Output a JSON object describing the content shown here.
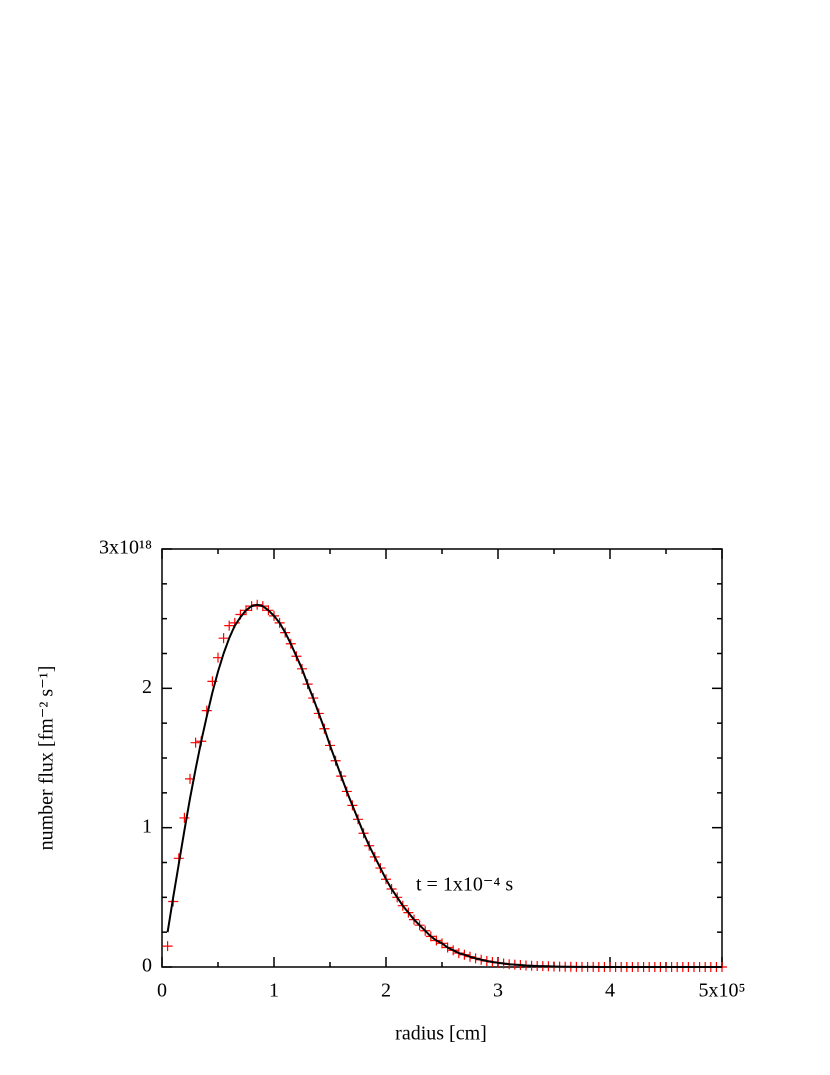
{
  "chart_data": {
    "type": "line",
    "xlabel": "radius [cm]",
    "ylabel": "number flux [fm⁻² s⁻¹]",
    "annotation": "t = 1x10⁻⁴ s",
    "xlim": [
      0,
      5
    ],
    "ylim": [
      0,
      3
    ],
    "xticks": [
      0,
      1,
      2,
      3,
      4,
      {
        "value": 5,
        "label": "5x10⁵"
      }
    ],
    "yticks": [
      0,
      1,
      2,
      {
        "value": 3,
        "label": "3x10¹⁸"
      }
    ],
    "xminorticks": [
      0.5,
      1.5,
      2.5,
      3.5,
      4.5
    ],
    "yminorticks": [
      0.25,
      0.5,
      0.75,
      1.25,
      1.5,
      1.75,
      2.25,
      2.5,
      2.75
    ],
    "x": [
      0.05,
      0.1,
      0.15,
      0.2,
      0.25,
      0.3,
      0.35,
      0.4,
      0.45,
      0.5,
      0.55,
      0.6,
      0.65,
      0.7,
      0.75,
      0.8,
      0.85,
      0.9,
      0.95,
      1.0,
      1.05,
      1.1,
      1.15,
      1.2,
      1.25,
      1.3,
      1.35,
      1.4,
      1.45,
      1.5,
      1.55,
      1.6,
      1.65,
      1.7,
      1.75,
      1.8,
      1.85,
      1.9,
      1.95,
      2.0,
      2.05,
      2.1,
      2.15,
      2.2,
      2.25,
      2.3,
      2.35,
      2.4,
      2.45,
      2.5,
      2.55,
      2.6,
      2.65,
      2.7,
      2.75,
      2.8,
      2.85,
      2.9,
      2.95,
      3.0,
      3.05,
      3.1,
      3.15,
      3.2,
      3.25,
      3.3,
      3.35,
      3.4,
      3.45,
      3.5,
      3.55,
      3.6,
      3.65,
      3.7,
      3.75,
      3.8,
      3.85,
      3.9,
      3.95,
      4.0,
      4.05,
      4.1,
      4.15,
      4.2,
      4.25,
      4.3,
      4.35,
      4.4,
      4.45,
      4.5,
      4.55,
      4.6,
      4.65,
      4.7,
      4.75,
      4.8,
      4.85,
      4.9,
      4.95,
      5.0
    ],
    "series": [
      {
        "style": "markers",
        "color": "#ff0000",
        "values": [
          0.15,
          0.47,
          0.78,
          1.07,
          1.35,
          1.61,
          1.62,
          1.84,
          2.05,
          2.22,
          2.36,
          2.45,
          2.47,
          2.53,
          2.56,
          2.59,
          2.6,
          2.59,
          2.56,
          2.52,
          2.47,
          2.4,
          2.32,
          2.23,
          2.14,
          2.03,
          1.93,
          1.82,
          1.71,
          1.59,
          1.48,
          1.37,
          1.26,
          1.16,
          1.06,
          0.96,
          0.87,
          0.79,
          0.71,
          0.63,
          0.56,
          0.5,
          0.44,
          0.39,
          0.34,
          0.3,
          0.26,
          0.22,
          0.19,
          0.17,
          0.14,
          0.12,
          0.1,
          0.088,
          0.074,
          0.062,
          0.052,
          0.043,
          0.036,
          0.03,
          0.025,
          0.02,
          0.017,
          0.014,
          0.011,
          0.009,
          0.007,
          0.006,
          0.005,
          0.004,
          0.003,
          0.002,
          0.002,
          0.001,
          0.001,
          0.001,
          0.001,
          0,
          0,
          0,
          0,
          0,
          0,
          0,
          0,
          0,
          0,
          0,
          0,
          0,
          0,
          0,
          0,
          0,
          0,
          0,
          0,
          0,
          0,
          0
        ]
      },
      {
        "style": "line",
        "color": "#000000",
        "values": [
          0.25,
          0.5,
          0.74,
          0.98,
          1.21,
          1.42,
          1.62,
          1.8,
          1.97,
          2.12,
          2.25,
          2.36,
          2.45,
          2.51,
          2.56,
          2.59,
          2.6,
          2.59,
          2.56,
          2.52,
          2.47,
          2.4,
          2.32,
          2.23,
          2.14,
          2.03,
          1.93,
          1.82,
          1.71,
          1.59,
          1.48,
          1.37,
          1.26,
          1.16,
          1.06,
          0.96,
          0.87,
          0.79,
          0.71,
          0.63,
          0.56,
          0.5,
          0.44,
          0.39,
          0.34,
          0.3,
          0.26,
          0.22,
          0.19,
          0.17,
          0.14,
          0.12,
          0.1,
          0.088,
          0.074,
          0.062,
          0.052,
          0.043,
          0.036,
          0.03,
          0.025,
          0.02,
          0.017,
          0.014,
          0.011,
          0.009,
          0.007,
          0.006,
          0.005,
          0.004,
          0.003,
          0.002,
          0.002,
          0.001,
          0.001,
          0.001,
          0.001,
          0,
          0,
          0,
          0,
          0,
          0,
          0,
          0,
          0,
          0,
          0,
          0,
          0,
          0,
          0,
          0,
          0,
          0,
          0,
          0,
          0,
          0,
          0
        ]
      }
    ]
  }
}
